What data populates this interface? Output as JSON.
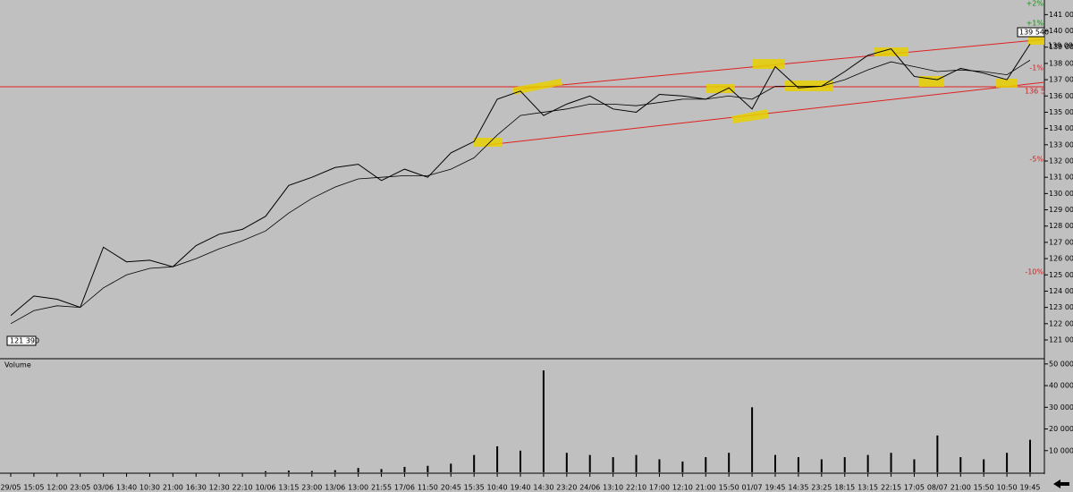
{
  "chart_data": [
    {
      "type": "line",
      "color": "#000000",
      "categories": [
        "29/05",
        "15:05",
        "12:00",
        "23:05",
        "03/06",
        "13:40",
        "10:30",
        "21:00",
        "16:30",
        "12:30",
        "22:10",
        "10/06",
        "13:15",
        "23:00",
        "13/06",
        "13:00",
        "21:55",
        "17/06",
        "11:50",
        "20:45",
        "15:35",
        "10:40",
        "19:40",
        "14:30",
        "23:20",
        "24/06",
        "13:10",
        "22:10",
        "17:00",
        "12:10",
        "21:00",
        "15:50",
        "01/07",
        "19:45",
        "14:35",
        "23:25",
        "18:15",
        "13:15",
        "22:15",
        "17:05",
        "08/07",
        "21:00",
        "15:50",
        "10:50",
        "19:45"
      ],
      "series": [
        {
          "color": "#000000",
          "values": [
            122500,
            123700,
            123500,
            123000,
            126700,
            125800,
            125900,
            125500,
            126800,
            127500,
            127800,
            128600,
            130500,
            131000,
            131600,
            131800,
            130800,
            131500,
            131000,
            132500,
            133200,
            135800,
            136300,
            134800,
            135500,
            136000,
            135200,
            135000,
            136100,
            136000,
            135800,
            136500,
            135200,
            137800,
            136500,
            136600,
            137500,
            138500,
            138900,
            137200,
            137000,
            137700,
            137400,
            137000,
            139200
          ]
        },
        {
          "color": "#000000",
          "values": [
            122000,
            122800,
            123100,
            123000,
            124200,
            125000,
            125400,
            125500,
            126000,
            126600,
            127100,
            127700,
            128800,
            129700,
            130400,
            130900,
            131000,
            131100,
            131100,
            131500,
            132200,
            133600,
            134800,
            135000,
            135200,
            135500,
            135500,
            135400,
            135600,
            135800,
            135800,
            136000,
            135800,
            136600,
            136600,
            136600,
            137000,
            137600,
            138100,
            137800,
            137500,
            137600,
            137500,
            137300,
            138200
          ]
        }
      ],
      "ylim": [
        119900,
        141900
      ],
      "yticks": [
        {
          "value": 121000,
          "label": "121 000"
        },
        {
          "value": 122000,
          "label": "122 000"
        },
        {
          "value": 123000,
          "label": "123 000"
        },
        {
          "value": 124000,
          "label": "124 000"
        },
        {
          "value": 125000,
          "label": "125 000"
        },
        {
          "value": 126000,
          "label": "126 000"
        },
        {
          "value": 127000,
          "label": "127 000"
        },
        {
          "value": 128000,
          "label": "128 000"
        },
        {
          "value": 129000,
          "label": "129 000"
        },
        {
          "value": 130000,
          "label": "130 000"
        },
        {
          "value": 131000,
          "label": "131 000"
        },
        {
          "value": 132000,
          "label": "132 000"
        },
        {
          "value": 133000,
          "label": "133 000"
        },
        {
          "value": 134000,
          "label": "134 000"
        },
        {
          "value": 135000,
          "label": "135 000"
        },
        {
          "value": 136000,
          "label": "136 000"
        },
        {
          "value": 137000,
          "label": "137 000"
        },
        {
          "value": 138000,
          "label": "138 000"
        },
        {
          "value": 139000,
          "label": "139 000"
        },
        {
          "value": 140000,
          "label": "140 000"
        },
        {
          "value": 141000,
          "label": "141 000"
        }
      ],
      "annotations": [
        "139 540",
        "139 090",
        "121 390",
        "136 5",
        "+2%",
        "+1%",
        "-1%",
        "-5%",
        "-10%"
      ]
    },
    {
      "type": "bar",
      "title": "Volume",
      "color": "#000000",
      "values": [
        0,
        0,
        0,
        0,
        0,
        0,
        0,
        0,
        0,
        0,
        0,
        500,
        800,
        600,
        1000,
        2000,
        1500,
        2500,
        3000,
        4000,
        8000,
        12000,
        10000,
        47000,
        9000,
        8000,
        7000,
        8000,
        6000,
        5000,
        7000,
        9000,
        30000,
        8000,
        7000,
        6000,
        7000,
        8000,
        9000,
        6000,
        17000,
        7000,
        6000,
        9000,
        15000
      ],
      "ylim": [
        0,
        52000
      ],
      "yticks": [
        {
          "value": 10000,
          "label": "10 000"
        },
        {
          "value": 20000,
          "label": "20 000"
        },
        {
          "value": 30000,
          "label": "30 000"
        },
        {
          "value": 40000,
          "label": "40 000"
        },
        {
          "value": 50000,
          "label": "50 000"
        }
      ]
    }
  ]
}
